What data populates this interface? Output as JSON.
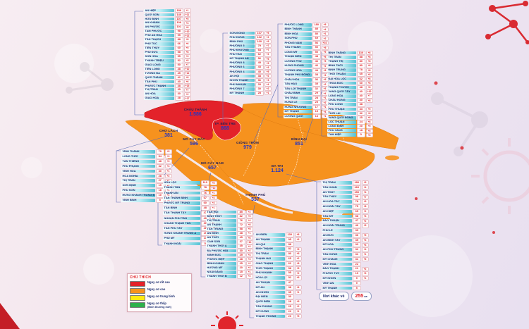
{
  "map": {
    "colors": {
      "risk_very_high": "#e3222a",
      "risk_high": "#f6921e",
      "risk_medium": "#ffe913",
      "risk_low": "#2db04b",
      "district_number": "#2336c2"
    },
    "districts": [
      {
        "name": "CHÂU THÀNH",
        "value": "1.586"
      },
      {
        "name": "TP. BẾN TRE",
        "value": "868"
      },
      {
        "name": "CHỢ LÁCH",
        "value": "381"
      },
      {
        "name": "MỎ CÀY BẮC",
        "value": "596"
      },
      {
        "name": "GIỒNG TRÔM",
        "value": "979"
      },
      {
        "name": "BÌNH ĐẠI",
        "value": "851"
      },
      {
        "name": "BA TRI",
        "value": "1.124"
      },
      {
        "name": "MỎ CÀY NAM",
        "value": "657"
      },
      {
        "name": "THẠNH PHÚ",
        "value": "537"
      }
    ]
  },
  "lists": {
    "chau_thanh": {
      "district": "Châu Thành",
      "rows": [
        [
          "AN HIỆP",
          "186",
          "+1"
        ],
        [
          "QUỚI SƠN",
          "140",
          "+11"
        ],
        [
          "HỮU ĐỊNH",
          "107",
          "+5"
        ],
        [
          "AN KHÁNH",
          "106",
          "+4"
        ],
        [
          "AN PHƯỚC",
          "101",
          "+8"
        ],
        [
          "TAM PHƯỚC",
          "98",
          "+10"
        ],
        [
          "PHÚ AN HÒA",
          "95",
          "+13"
        ],
        [
          "TÂN THẠCH",
          "88",
          "+8"
        ],
        [
          "PHÚ TÚC",
          "66",
          "+6"
        ],
        [
          "TIÊN THỦY",
          "60",
          "+5"
        ],
        [
          "PHÚ ĐỨC",
          "58",
          "+8"
        ],
        [
          "SƠN HÒA",
          "55",
          "+3"
        ],
        [
          "THÀNH TRIỆU",
          "52",
          "+5"
        ],
        [
          "GIAO LONG",
          "50",
          "+7"
        ],
        [
          "TIÊN LONG",
          "48",
          "+10"
        ],
        [
          "TƯỜNG ĐA",
          "45",
          "+12"
        ],
        [
          "QUỚI THÀNH",
          "42",
          "+8"
        ],
        [
          "TÂN PHÚ",
          "40",
          "+6"
        ],
        [
          "PHƯỚC THẠNH",
          "38",
          "+15"
        ],
        [
          "THỊ TRẤN",
          "35",
          "+7"
        ],
        [
          "AN HÓA",
          "30",
          "+2"
        ],
        [
          "GIAO HÒA",
          "28",
          "+17"
        ]
      ]
    },
    "tp_ben_tre": {
      "district": "TP. Bến Tre",
      "rows": [
        [
          "SƠN ĐÔNG",
          "107",
          "+5"
        ],
        [
          "PHÚ HƯNG",
          "102",
          "+2"
        ],
        [
          "BÌNH PHÚ",
          "100",
          "+5"
        ],
        [
          "PHƯỜNG 5",
          "79",
          "+7"
        ],
        [
          "PHÚ KHƯƠNG",
          "68",
          "+7"
        ],
        [
          "PHÚ TÂN",
          "62",
          "+2"
        ],
        [
          "MỸ THẠNH AN",
          "56",
          "+5"
        ],
        [
          "PHƯỜNG 8",
          "45",
          "+5"
        ],
        [
          "PHƯỜNG 6",
          "43",
          "+3"
        ],
        [
          "PHƯỜNG 4",
          "40",
          "+5"
        ],
        [
          "AN HỘI",
          "38",
          "+2"
        ],
        [
          "NHƠN THẠNH",
          "36",
          "+3"
        ],
        [
          "PHÚ NHUẬN",
          "33",
          "+4"
        ],
        [
          "PHƯỜNG 7",
          "30",
          "+2"
        ],
        [
          "MỸ THÀNH",
          "28",
          "+1"
        ]
      ]
    },
    "giong_trom": {
      "district": "Giồng Trôm",
      "rows": [
        [
          "PHƯỚC LONG",
          "180",
          "+5"
        ],
        [
          "BÌNH THÀNH",
          "85",
          "+4"
        ],
        [
          "BÌNH HÒA",
          "80",
          "+1"
        ],
        [
          "SƠN PHÚ",
          "69",
          "+2"
        ],
        [
          "PHONG NẪM",
          "56",
          "+10"
        ],
        [
          "TÂN THANH",
          "50",
          "+5"
        ],
        [
          "LONG MỸ",
          "50",
          "+9"
        ],
        [
          "THUẬN ĐIỀN",
          "48",
          "+5"
        ],
        [
          "LƯƠNG PHÚ",
          "46",
          "+5"
        ],
        [
          "HƯNG PHONG",
          "46",
          "+2"
        ],
        [
          "LƯƠNG HÒA",
          "44",
          "+8"
        ],
        [
          "THẠNH PHÚ ĐÔNG",
          "38",
          "+3"
        ],
        [
          "CHÂU HÒA",
          "36",
          "+5"
        ],
        [
          "TÂN HÀO",
          "35",
          "+2"
        ],
        [
          "TÂN LỢI THẠNH",
          "32",
          "+3"
        ],
        [
          "CHÂU BÌNH",
          "29",
          "+4"
        ],
        [
          "THỊ TRẤN",
          "28",
          "+1"
        ],
        [
          "HƯNG LỄ",
          "25",
          "+2"
        ],
        [
          "HƯNG NHƯỢNG",
          "17",
          "+1"
        ],
        [
          "MỸ THẠNH",
          "15",
          "+4"
        ],
        [
          "LƯƠNG QUỚI",
          "13",
          "+1"
        ]
      ]
    },
    "binh_dai": {
      "district": "Bình Đại",
      "rows": [
        [
          "BÌNH THẮNG",
          "130",
          "+8"
        ],
        [
          "THỊ TRẤN",
          "88",
          "+8"
        ],
        [
          "THẠNH TRỊ",
          "80",
          "+8"
        ],
        [
          "BÌNH THỚI",
          "80",
          "+8"
        ],
        [
          "ĐỊNH TRUNG",
          "78",
          "+8"
        ],
        [
          "THỚI THUẬN",
          "65",
          "+5"
        ],
        [
          "ĐẠI HÒA LỘC",
          "62",
          "+8"
        ],
        [
          "THỪA ĐỨC",
          "60",
          "+8"
        ],
        [
          "THẠNH PHƯỚC",
          "48",
          "+8"
        ],
        [
          "VANG QUỚI TÂY",
          "40",
          "+10"
        ],
        [
          "LONG HÒA",
          "40",
          "+7"
        ],
        [
          "CHÂU HƯNG",
          "40",
          "+8"
        ],
        [
          "PHÚ LONG",
          "38",
          ""
        ],
        [
          "PHÚ THUẬN",
          "33",
          "+5"
        ],
        [
          "THỚI LAI",
          "32",
          "+8"
        ],
        [
          "VANG QUỚI ĐÔNG",
          "25",
          "+8"
        ],
        [
          "LỘC THUẬN",
          "24",
          "+8"
        ],
        [
          "LONG ĐỊNH",
          "20",
          "+5"
        ],
        [
          "PHÚ VANG",
          "18",
          "+5"
        ],
        [
          "TAM HIỆP",
          "5",
          "+8"
        ]
      ]
    },
    "cho_lach": {
      "district": "Chợ Lách",
      "rows": [
        [
          "VĨNH THÀNH",
          "79",
          "+5"
        ],
        [
          "LONG THỚI",
          "54",
          "+3"
        ],
        [
          "TÂN THIỀNG",
          "48",
          "+3"
        ],
        [
          "PHÚ PHỤNG",
          "32",
          "+4"
        ],
        [
          "VĨNH HÒA",
          "30",
          "+1"
        ],
        [
          "HÒA NGHĨA",
          "28",
          "+2"
        ],
        [
          "THỊ TRẤN",
          "27",
          "+7"
        ],
        [
          "SƠN ĐỊNH",
          "19",
          "+3"
        ],
        [
          "PHÚ SƠN",
          "18",
          "+1"
        ],
        [
          "HƯNG KHÁNH TRUNG B",
          "10",
          "+2"
        ],
        [
          "VĨNH BÌNH",
          "5",
          "+1"
        ]
      ]
    },
    "mo_cay_bac": {
      "district": "Mỏ Cày Bắc",
      "rows": [
        [
          "HÒA LỘC",
          "110",
          "+5"
        ],
        [
          "THANH TÂN",
          "78",
          "+10"
        ],
        [
          "THÀNH AN",
          "76",
          "+1"
        ],
        [
          "TÂN THÀNH BÌNH",
          "67",
          "+3"
        ],
        [
          "PHƯỚC MỸ TRUNG",
          "60",
          "+3"
        ],
        [
          "TÂN BÌNH",
          "48",
          "+1"
        ],
        [
          "TÂN THANH TÂY",
          "47",
          "+2"
        ],
        [
          "NHUẬN PHÚ TÂN",
          "40",
          "+4"
        ],
        [
          "KHÁNH THẠNH TÂN",
          "30",
          "+1"
        ],
        [
          "TÂN PHÚ TÂY",
          "28",
          "+10"
        ],
        [
          "HƯNG KHÁNH TRUNG A",
          "15",
          "+2"
        ],
        [
          "PHÚ MỸ",
          "13",
          ""
        ],
        [
          "THẠNH NGÃI",
          "5",
          ""
        ]
      ]
    },
    "mo_cay_nam": {
      "district": "Mỏ Cày Nam",
      "rows": [
        [
          "TÂN HỘI",
          "85",
          "+2"
        ],
        [
          "ĐỊNH THỦY",
          "82",
          "+5"
        ],
        [
          "THỊ TRẤN",
          "76",
          "+4"
        ],
        [
          "AN THẠNH",
          "72",
          "+8"
        ],
        [
          "TÂN TRUNG",
          "58",
          "+5"
        ],
        [
          "AN ĐỊNH",
          "48",
          "+1"
        ],
        [
          "AN THỚI",
          "45",
          "+6"
        ],
        [
          "CẨM SƠN",
          "37",
          "+10"
        ],
        [
          "THÀNH THỚI A",
          "35",
          "+3"
        ],
        [
          "ĐA PHƯỚC HỘI",
          "30",
          "+2"
        ],
        [
          "MINH ĐỨC",
          "29",
          "+4"
        ],
        [
          "PHƯỚC HIỆP",
          "28",
          "+3"
        ],
        [
          "BÌNH KHÁNH",
          "25",
          "+2"
        ],
        [
          "HƯƠNG MỸ",
          "20",
          "+3"
        ],
        [
          "NGÃI ĐĂNG",
          "15",
          "+1"
        ],
        [
          "THÀNH THỚI B",
          "12",
          "+2"
        ]
      ]
    },
    "thanh_phu": {
      "district": "Thạnh Phú",
      "rows": [
        [
          "AN ĐIỀN",
          "130",
          "+8"
        ],
        [
          "AN THẠNH",
          "95",
          "+3"
        ],
        [
          "AN QUI",
          "88",
          ""
        ],
        [
          "BÌNH THẠNH",
          "82",
          "+5"
        ],
        [
          "THỊ TRẤN",
          "80",
          "+5"
        ],
        [
          "THẠNH HẢI",
          "65",
          "+2"
        ],
        [
          "GIAO THẠNH",
          "62",
          "+8"
        ],
        [
          "THỚI THẠNH",
          "58",
          "+5"
        ],
        [
          "PHÚ KHÁNH",
          "55",
          "+2"
        ],
        [
          "HÒA LỢI",
          "52",
          "+5"
        ],
        [
          "AN THUẬN",
          "47",
          ""
        ],
        [
          "MỸ AN",
          "38",
          "+6"
        ],
        [
          "AN NHƠN",
          "35",
          "+1"
        ],
        [
          "ĐẠI ĐIỀN",
          "30",
          ""
        ],
        [
          "QUỚI ĐIỀN",
          "28",
          "+5"
        ],
        [
          "TÂN PHONG",
          "25",
          "+2"
        ],
        [
          "MỸ HƯNG",
          "22",
          "+1"
        ],
        [
          "THẠNH PHONG",
          "20",
          "+5"
        ]
      ]
    },
    "ba_tri": {
      "district": "Ba Tri",
      "rows": [
        [
          "THỊ TRẤN",
          "180",
          "+5"
        ],
        [
          "TÂN XUÂN",
          "160",
          "+4"
        ],
        [
          "AN THỦY",
          "150",
          "+4"
        ],
        [
          "TÂN THỦY",
          "98",
          "+7"
        ],
        [
          "AN HÒA TÂY",
          "78",
          "+5"
        ],
        [
          "AN NGÃI TÂY",
          "75",
          "+8"
        ],
        [
          "AN HIỆP",
          "65",
          "+2"
        ],
        [
          "TÂN MỸ",
          "58",
          "+3"
        ],
        [
          "BẢO THUẬN",
          "47",
          "+2"
        ],
        [
          "AN NGÃI TRUNG",
          "46",
          "+5"
        ],
        [
          "PHÚ LỄ",
          "39",
          ""
        ],
        [
          "AN ĐỨC",
          "36",
          "+5"
        ],
        [
          "AN BÌNH TÂY",
          "35",
          "+3"
        ],
        [
          "MỸ HÒA",
          "33",
          "+3"
        ],
        [
          "AN PHÚ TRUNG",
          "32",
          "+4"
        ],
        [
          "TÂN HƯNG",
          "31",
          "+1"
        ],
        [
          "MỸ CHÁNH",
          "31",
          "+6"
        ],
        [
          "VĨNH HÒA",
          "22",
          ""
        ],
        [
          "BẢO THẠNH",
          "21",
          "+2"
        ],
        [
          "PHƯỚC TUY",
          "19",
          "+3"
        ],
        [
          "MỸ NHƠN",
          "9",
          "+1"
        ],
        [
          "VĨNH AN",
          "9",
          ""
        ],
        [
          "MỸ THẠNH",
          "5",
          ""
        ]
      ]
    }
  },
  "legend": {
    "title": "CHÚ THÍCH",
    "items": [
      {
        "color": "#e3222a",
        "label": "Nguy cơ rất cao",
        "sublabel": ""
      },
      {
        "color": "#f6921e",
        "label": "Nguy cơ cao",
        "sublabel": ""
      },
      {
        "color": "#ffe913",
        "label": "Nguy cơ trung bình",
        "sublabel": ""
      },
      {
        "color": "#2db04b",
        "label": "Nguy cơ thấp",
        "sublabel": "(Bình thường mới)"
      }
    ]
  },
  "badge": {
    "prefix": "Nơi khác về",
    "value": "255",
    "unit": "ca"
  }
}
